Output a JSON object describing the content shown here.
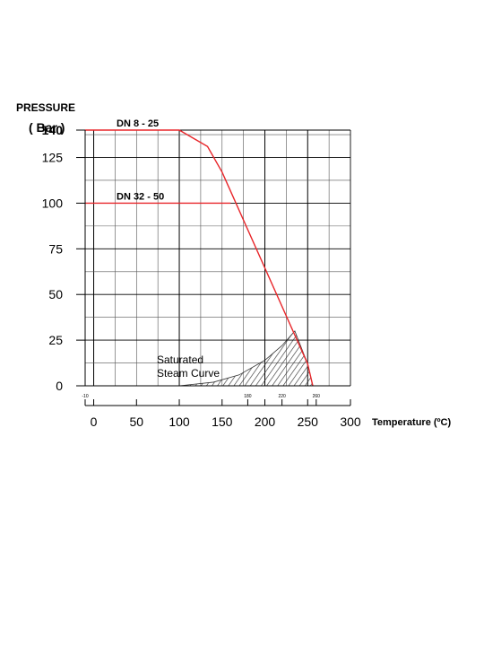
{
  "chart_data": {
    "type": "line",
    "ylabel_line1": "PRESSURE",
    "ylabel_line2": "( Bar )",
    "xlabel": "Temperature (ºC)",
    "xlim": [
      -10,
      300
    ],
    "ylim": [
      0,
      140
    ],
    "x_ticks": [
      "0",
      "50",
      "100",
      "150",
      "200",
      "250",
      "300"
    ],
    "x_tick_values": [
      0,
      50,
      100,
      150,
      200,
      250,
      300
    ],
    "x_minor_labels": [
      {
        "label": "-10",
        "value": -10
      },
      {
        "label": "180",
        "value": 180
      },
      {
        "label": "220",
        "value": 220
      },
      {
        "label": "260",
        "value": 260
      }
    ],
    "y_ticks": [
      "0",
      "25",
      "50",
      "75",
      "100",
      "125",
      "140"
    ],
    "y_tick_values": [
      0,
      25,
      50,
      75,
      100,
      125,
      140
    ],
    "grid": true,
    "series": [
      {
        "name": "DN 8 - 25",
        "color": "#e8262a",
        "points": [
          [
            -10,
            140
          ],
          [
            100,
            140
          ],
          [
            133,
            131
          ],
          [
            150,
            117
          ],
          [
            250,
            12
          ],
          [
            256,
            0
          ]
        ]
      },
      {
        "name": "DN 32 - 50",
        "color": "#e8262a",
        "points": [
          [
            -10,
            100
          ],
          [
            160,
            100
          ]
        ]
      }
    ],
    "region_label_line1": "Saturated",
    "region_label_line2": "Steam Curve",
    "saturated_region": [
      [
        100,
        0
      ],
      [
        140,
        2
      ],
      [
        170,
        6
      ],
      [
        200,
        14
      ],
      [
        220,
        22
      ],
      [
        235,
        30
      ],
      [
        250,
        12
      ],
      [
        256,
        0
      ]
    ]
  }
}
